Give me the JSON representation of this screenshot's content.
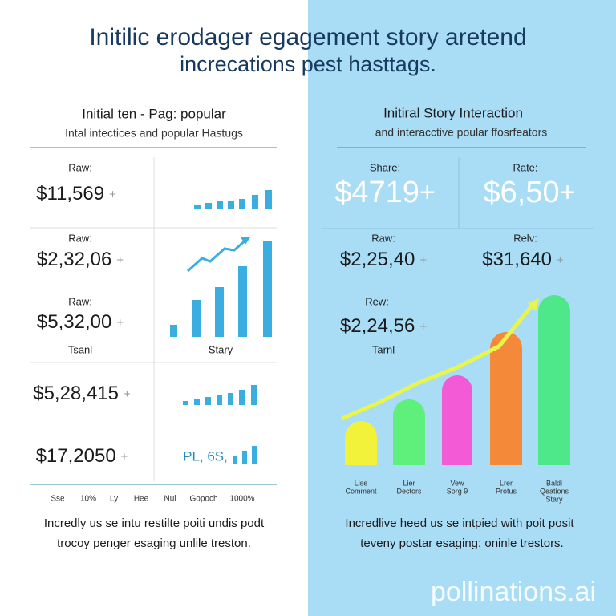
{
  "header": {
    "title_line1": "Initilic erodager egagement story aretend",
    "title_line2": "increcations pest hasttags."
  },
  "left": {
    "heading": "Initial ten - Pag: popular",
    "subheading": "Intal intectices and popular Hastugs",
    "metrics": [
      {
        "label": "Raw:",
        "value": "$11,569",
        "suffix": "+"
      },
      {
        "label": "Raw:",
        "value": "$2,32,06",
        "suffix": "+"
      },
      {
        "label": "Raw:",
        "value": "$5,32,00",
        "suffix": "+"
      },
      {
        "value": "$5,28,415",
        "suffix": "+"
      },
      {
        "value": "$17,2050",
        "suffix": "+"
      }
    ],
    "section_labels": [
      "Tsanl",
      "Stary"
    ],
    "chart_overlay": "PL, 6S,",
    "axis_labels": [
      "Sse",
      "10%",
      "Ly",
      "Hee",
      "Nul",
      "Gopoch",
      "1000%"
    ],
    "footer": [
      "Incredly us se intu restilte poiti undis podt",
      "trocoy penger esaging unlile treston."
    ]
  },
  "right": {
    "heading": "Initiral Story Interaction",
    "subheading": "and interacctive poular ffosrfeators",
    "metrics": [
      {
        "label": "Share:",
        "value": "$4719",
        "suffix": "+"
      },
      {
        "label": "Rate:",
        "value": "$6,50",
        "suffix": "+"
      },
      {
        "label": "Raw:",
        "value": "$2,25,40",
        "suffix": "+"
      },
      {
        "label": "Relv:",
        "value": "$31,640",
        "suffix": "+"
      },
      {
        "label": "Rew:",
        "value": "$2,24,56",
        "suffix": "+"
      }
    ],
    "section_label": "Tarnl",
    "bar_labels": [
      [
        "Lise",
        "Comment"
      ],
      [
        "Lier",
        "Dectors"
      ],
      [
        "Vew",
        "Sorg 9"
      ],
      [
        "Lrer",
        "Protus"
      ],
      [
        "Baldi",
        "Qeations",
        "Stary"
      ]
    ],
    "footer": [
      "Incredlive heed us se intpied with poit posit",
      "teveny postar esaging: oninle trestors."
    ]
  },
  "watermark": "pollinations.ai"
}
